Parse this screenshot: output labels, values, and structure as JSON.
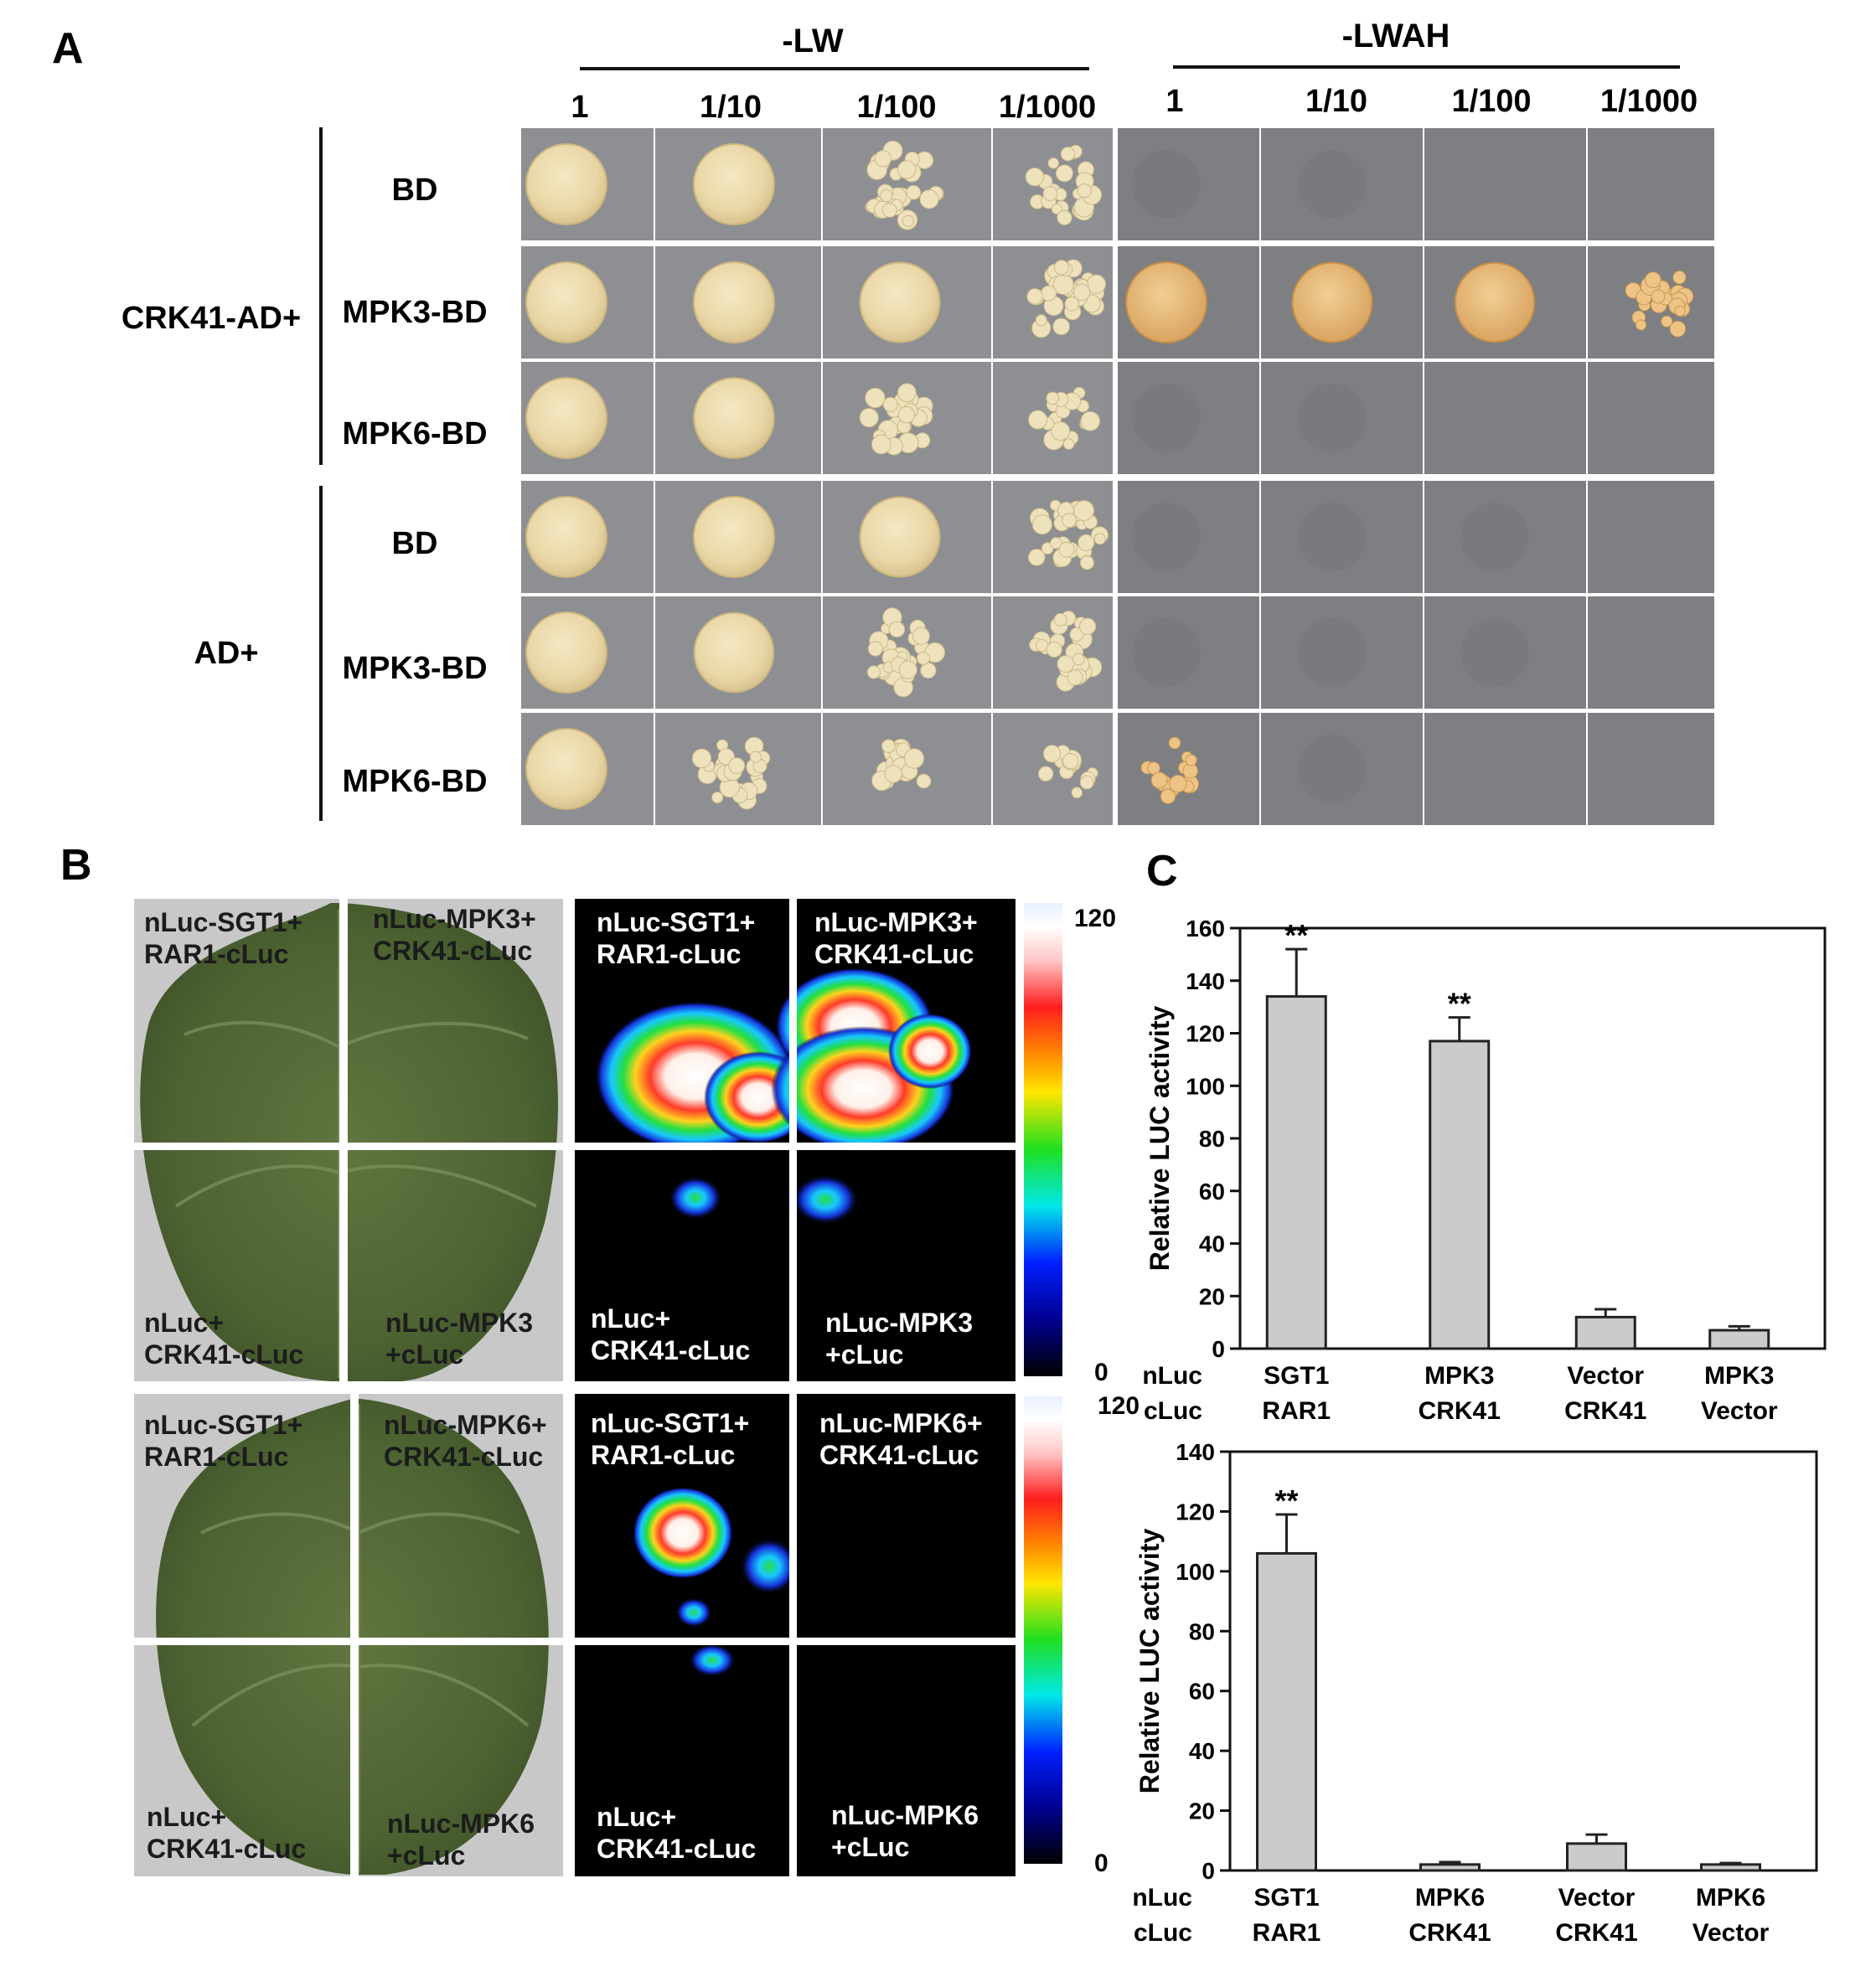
{
  "panel_a": {
    "label": "A",
    "conditions": [
      "-LW",
      "-LWAH"
    ],
    "dilutions": [
      "1",
      "1/10",
      "1/100",
      "1/1000"
    ],
    "groups": [
      {
        "label": "CRK41-AD+",
        "rows": [
          "BD",
          "MPK3-BD",
          "MPK6-BD"
        ]
      },
      {
        "label": "AD+",
        "rows": [
          "BD",
          "MPK3-BD",
          "MPK6-BD"
        ]
      }
    ],
    "growth": {
      "description": "colony density per spot; row order matches groups, columns: -LW 1..1/1000 then -LWAH 1..1/1000",
      "lw": [
        [
          1.0,
          1.0,
          0.8,
          0.6
        ],
        [
          1.0,
          1.0,
          0.9,
          0.7
        ],
        [
          1.0,
          0.95,
          0.55,
          0.35
        ],
        [
          1.0,
          1.0,
          0.9,
          0.7
        ],
        [
          1.0,
          0.85,
          0.7,
          0.65
        ],
        [
          1.0,
          0.6,
          0.3,
          0.25
        ]
      ],
      "lwah": [
        [
          0.1,
          0.05,
          0.0,
          0.0
        ],
        [
          1.0,
          0.9,
          0.85,
          0.5
        ],
        [
          0.1,
          0.05,
          0.0,
          0.0
        ],
        [
          0.1,
          0.05,
          0.05,
          0.0
        ],
        [
          0.1,
          0.05,
          0.05,
          0.0
        ],
        [
          0.25,
          0.05,
          0.0,
          0.0
        ]
      ]
    }
  },
  "panel_b": {
    "label": "B",
    "top": {
      "leaf_labels": [
        "nLuc-SGT1+\nRAR1-cLuc",
        "nLuc-MPK3+\nCRK41-cLuc",
        "nLuc+\nCRK41-cLuc",
        "nLuc-MPK3\n+cLuc"
      ],
      "scale_max": "120",
      "scale_min": "0"
    },
    "bottom": {
      "leaf_labels": [
        "nLuc-SGT1+\nRAR1-cLuc",
        "nLuc-MPK6+\nCRK41-cLuc",
        "nLuc+\nCRK41-cLuc",
        "nLuc-MPK6\n+cLuc"
      ],
      "scale_max": "120",
      "scale_min": "0"
    }
  },
  "panel_c": {
    "label": "C"
  },
  "chart_data": [
    {
      "type": "bar",
      "ylabel": "Relative LUC activity",
      "ylim": [
        0,
        160
      ],
      "yticks": [
        0,
        20,
        40,
        60,
        80,
        100,
        120,
        140,
        160
      ],
      "row_labels": [
        "nLuc",
        "cLuc"
      ],
      "categories": [
        [
          "SGT1",
          "RAR1"
        ],
        [
          "MPK3",
          "CRK41"
        ],
        [
          "Vector",
          "CRK41"
        ],
        [
          "MPK3",
          "Vector"
        ]
      ],
      "values": [
        134,
        117,
        12,
        7
      ],
      "errors": [
        18,
        9,
        3,
        1.5
      ],
      "annotations": [
        "**",
        "**",
        "",
        ""
      ],
      "grid": false
    },
    {
      "type": "bar",
      "ylabel": "Relative LUC activity",
      "ylim": [
        0,
        140
      ],
      "yticks": [
        0,
        20,
        40,
        60,
        80,
        100,
        120,
        140
      ],
      "row_labels": [
        "nLuc",
        "cLuc"
      ],
      "categories": [
        [
          "SGT1",
          "RAR1"
        ],
        [
          "MPK6",
          "CRK41"
        ],
        [
          "Vector",
          "CRK41"
        ],
        [
          "MPK6",
          "Vector"
        ]
      ],
      "values": [
        106,
        2,
        9,
        2
      ],
      "errors": [
        13,
        0.8,
        3,
        0.5
      ],
      "annotations": [
        "**",
        "",
        "",
        ""
      ],
      "grid": false
    }
  ]
}
